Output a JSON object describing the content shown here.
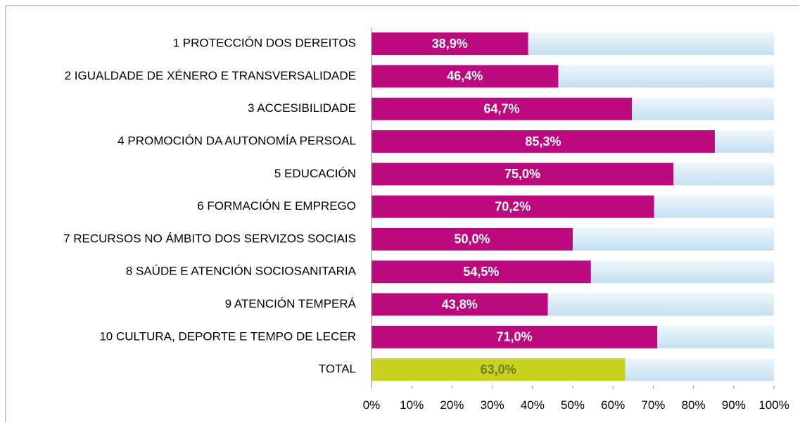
{
  "chart_data": {
    "type": "bar",
    "orientation": "horizontal",
    "categories": [
      "1 PROTECCIÓN DOS DEREITOS",
      "2 IGUALDADE DE XÉNERO E TRANSVERSALIDADE",
      "3 ACCESIBILIDADE",
      "4 PROMOCIÓN DA AUTONOMÍA PERSOAL",
      "5 EDUCACIÓN",
      "6 FORMACIÓN E EMPREGO",
      "7 RECURSOS NO ÁMBITO DOS SERVIZOS SOCIAIS",
      "8 SAÚDE E ATENCIÓN SOCIOSANITARIA",
      "9 ATENCIÓN TEMPERÁ",
      "10 CULTURA, DEPORTE E TEMPO DE LECER",
      "TOTAL"
    ],
    "values": [
      38.9,
      46.4,
      64.7,
      85.3,
      75.0,
      70.2,
      50.0,
      54.5,
      43.8,
      71.0,
      63.0
    ],
    "value_labels": [
      "38,9%",
      "46,4%",
      "64,7%",
      "85,3%",
      "75,0%",
      "70,2%",
      "50,0%",
      "54,5%",
      "43,8%",
      "71,0%",
      "63,0%"
    ],
    "colors": [
      "#bb0a7e",
      "#bb0a7e",
      "#bb0a7e",
      "#bb0a7e",
      "#bb0a7e",
      "#bb0a7e",
      "#bb0a7e",
      "#bb0a7e",
      "#bb0a7e",
      "#bb0a7e",
      "#c9d31f"
    ],
    "value_label_colors": [
      "#ffffff",
      "#ffffff",
      "#ffffff",
      "#ffffff",
      "#ffffff",
      "#ffffff",
      "#ffffff",
      "#ffffff",
      "#ffffff",
      "#ffffff",
      "#6e7b1c"
    ],
    "background_color": "#c4e0f0",
    "xlim": [
      0,
      100
    ],
    "xticks": [
      {
        "value": 0,
        "label": "0%"
      },
      {
        "value": 10,
        "label": "10%"
      },
      {
        "value": 20,
        "label": "20%"
      },
      {
        "value": 30,
        "label": "30%"
      },
      {
        "value": 40,
        "label": "40%"
      },
      {
        "value": 50,
        "label": "50%"
      },
      {
        "value": 60,
        "label": "60%"
      },
      {
        "value": 70,
        "label": "70%"
      },
      {
        "value": 80,
        "label": "80%"
      },
      {
        "value": 90,
        "label": "90%"
      },
      {
        "value": 100,
        "label": "100%"
      }
    ]
  }
}
